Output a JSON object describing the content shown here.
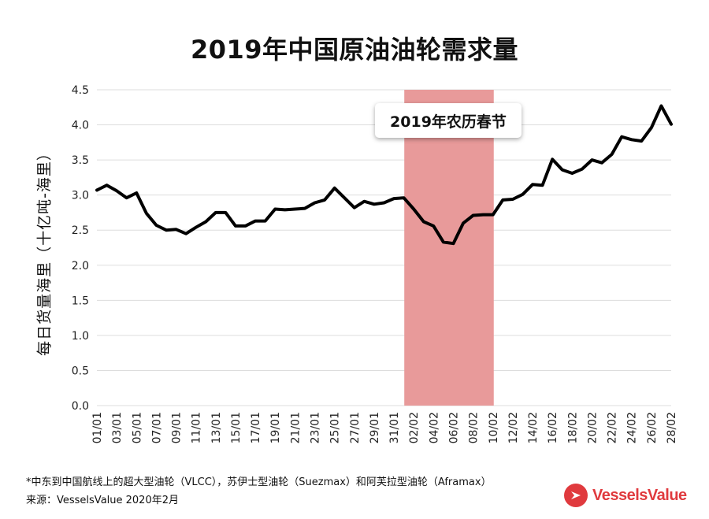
{
  "title": "2019年中国原油油轮需求量",
  "footnote": "*中东到中国航线上的超大型油轮（VLCC），苏伊士型油轮（Suezmax）和阿芙拉型油轮（Aframax）",
  "source": "来源：VesselsValue 2020年2月",
  "brand": {
    "name": "VesselsValue",
    "color": "#e03a3e"
  },
  "chart_data": {
    "type": "line",
    "title": "2019年中国原油油轮需求量",
    "ylabel": "每日货量海里（十亿吨-海里）",
    "xlabel": "",
    "ylim": [
      0,
      4.5
    ],
    "yticks": [
      "0.0",
      "0.5",
      "1.0",
      "1.5",
      "2.0",
      "2.5",
      "3.0",
      "3.5",
      "4.0",
      "4.5"
    ],
    "xtick_labels": [
      "01/01",
      "03/01",
      "05/01",
      "07/01",
      "09/01",
      "11/01",
      "13/01",
      "15/01",
      "17/01",
      "19/01",
      "21/01",
      "23/01",
      "25/01",
      "27/01",
      "29/01",
      "31/01",
      "02/02",
      "04/02",
      "06/02",
      "08/02",
      "10/02",
      "12/02",
      "14/02",
      "16/02",
      "18/02",
      "20/02",
      "22/02",
      "24/02",
      "26/02",
      "28/02"
    ],
    "grid": true,
    "line_color": "#000000",
    "highlight": {
      "label": "2019年农历春节",
      "start": "02/02",
      "end": "11/02",
      "color": "#e89a9a"
    },
    "series": [
      {
        "values": [
          3.07,
          3.14,
          3.06,
          2.96,
          3.03,
          2.74,
          2.57,
          2.5,
          2.51,
          2.45,
          2.54,
          2.62,
          2.75,
          2.75,
          2.56,
          2.56,
          2.63,
          2.63,
          2.8,
          2.79,
          2.8,
          2.81,
          2.89,
          2.93,
          3.1,
          2.96,
          2.82,
          2.91,
          2.87,
          2.89,
          2.95,
          2.96,
          2.8,
          2.62,
          2.56,
          2.33,
          2.31,
          2.6,
          2.71,
          2.72,
          2.72,
          2.93,
          2.94,
          3.01,
          3.15,
          3.14,
          3.51,
          3.36,
          3.31,
          3.37,
          3.5,
          3.46,
          3.58,
          3.83,
          3.79,
          3.77,
          3.96,
          4.27,
          4.01
        ]
      }
    ]
  }
}
